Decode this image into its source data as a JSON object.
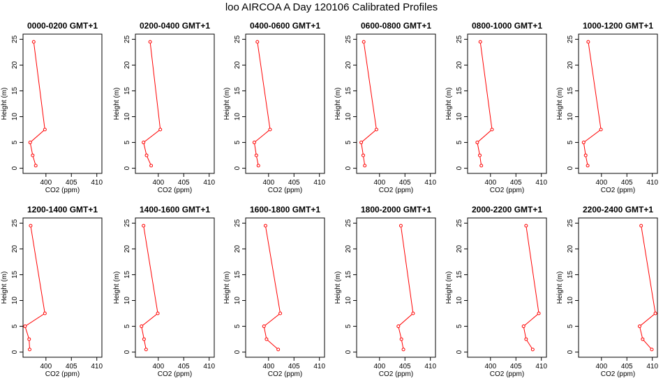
{
  "title": "loo AIRCOA A  Day 120106  Calibrated Profiles",
  "colors": {
    "profile": "#ff0000",
    "axis": "#000000",
    "background": "#ffffff"
  },
  "chart_data": [
    {
      "type": "line",
      "title": "0000-0200 GMT+1",
      "xlabel": "CO2 (ppm)",
      "ylabel": "Height (m)",
      "xlim": [
        395.5,
        411
      ],
      "ylim": [
        -1,
        26
      ],
      "xticks": [
        400,
        405,
        410
      ],
      "yticks": [
        0,
        5,
        10,
        15,
        20,
        25
      ],
      "grid": false,
      "series": [
        {
          "x": [
            398.0,
            397.4,
            396.9,
            399.8,
            397.6
          ],
          "y": [
            0.5,
            2.5,
            5.0,
            7.5,
            24.5
          ]
        }
      ]
    },
    {
      "type": "line",
      "title": "0200-0400 GMT+1",
      "xlabel": "CO2 (ppm)",
      "ylabel": "Height (m)",
      "xlim": [
        395.5,
        411
      ],
      "ylim": [
        -1,
        26
      ],
      "xticks": [
        400,
        405,
        410
      ],
      "yticks": [
        0,
        5,
        10,
        15,
        20,
        25
      ],
      "grid": false,
      "series": [
        {
          "x": [
            398.6,
            397.7,
            397.1,
            400.4,
            398.4
          ],
          "y": [
            0.5,
            2.5,
            5.0,
            7.5,
            24.5
          ]
        }
      ]
    },
    {
      "type": "line",
      "title": "0400-0600 GMT+1",
      "xlabel": "CO2 (ppm)",
      "ylabel": "Height (m)",
      "xlim": [
        395.5,
        411
      ],
      "ylim": [
        -1,
        26
      ],
      "xticks": [
        400,
        405,
        410
      ],
      "yticks": [
        0,
        5,
        10,
        15,
        20,
        25
      ],
      "grid": false,
      "series": [
        {
          "x": [
            398.0,
            397.6,
            397.2,
            400.3,
            397.8
          ],
          "y": [
            0.5,
            2.5,
            5.0,
            7.5,
            24.5
          ]
        }
      ]
    },
    {
      "type": "line",
      "title": "0600-0800 GMT+1",
      "xlabel": "CO2 (ppm)",
      "ylabel": "Height (m)",
      "xlim": [
        395.5,
        411
      ],
      "ylim": [
        -1,
        26
      ],
      "xticks": [
        400,
        405,
        410
      ],
      "yticks": [
        0,
        5,
        10,
        15,
        20,
        25
      ],
      "grid": false,
      "series": [
        {
          "x": [
            397.1,
            396.8,
            396.4,
            399.4,
            396.9
          ],
          "y": [
            0.5,
            2.5,
            5.0,
            7.5,
            24.5
          ]
        }
      ]
    },
    {
      "type": "line",
      "title": "0800-1000 GMT+1",
      "xlabel": "CO2 (ppm)",
      "ylabel": "Height (m)",
      "xlim": [
        395.5,
        411
      ],
      "ylim": [
        -1,
        26
      ],
      "xticks": [
        400,
        405,
        410
      ],
      "yticks": [
        0,
        5,
        10,
        15,
        20,
        25
      ],
      "grid": false,
      "series": [
        {
          "x": [
            398.2,
            397.9,
            397.4,
            400.3,
            398.0
          ],
          "y": [
            0.5,
            2.5,
            5.0,
            7.5,
            24.5
          ]
        }
      ]
    },
    {
      "type": "line",
      "title": "1000-1200 GMT+1",
      "xlabel": "CO2 (ppm)",
      "ylabel": "Height (m)",
      "xlim": [
        395.5,
        411
      ],
      "ylim": [
        -1,
        26
      ],
      "xticks": [
        400,
        405,
        410
      ],
      "yticks": [
        0,
        5,
        10,
        15,
        20,
        25
      ],
      "grid": false,
      "series": [
        {
          "x": [
            397.3,
            396.9,
            396.5,
            399.9,
            397.4
          ],
          "y": [
            0.5,
            2.5,
            5.0,
            7.5,
            24.5
          ]
        }
      ]
    },
    {
      "type": "line",
      "title": "1200-1400 GMT+1",
      "xlabel": "CO2 (ppm)",
      "ylabel": "Height (m)",
      "xlim": [
        395.5,
        411
      ],
      "ylim": [
        -1,
        26
      ],
      "xticks": [
        400,
        405,
        410
      ],
      "yticks": [
        0,
        5,
        10,
        15,
        20,
        25
      ],
      "grid": false,
      "series": [
        {
          "x": [
            396.8,
            396.7,
            395.9,
            399.8,
            397.0
          ],
          "y": [
            0.5,
            2.5,
            5.0,
            7.5,
            24.5
          ]
        }
      ]
    },
    {
      "type": "line",
      "title": "1400-1600 GMT+1",
      "xlabel": "CO2 (ppm)",
      "ylabel": "Height (m)",
      "xlim": [
        395.5,
        411
      ],
      "ylim": [
        -1,
        26
      ],
      "xticks": [
        400,
        405,
        410
      ],
      "yticks": [
        0,
        5,
        10,
        15,
        20,
        25
      ],
      "grid": false,
      "series": [
        {
          "x": [
            397.6,
            397.2,
            396.7,
            399.9,
            397.1
          ],
          "y": [
            0.5,
            2.5,
            5.0,
            7.5,
            24.5
          ]
        }
      ]
    },
    {
      "type": "line",
      "title": "1600-1800 GMT+1",
      "xlabel": "CO2 (ppm)",
      "ylabel": "Height (m)",
      "xlim": [
        395.5,
        411
      ],
      "ylim": [
        -1,
        26
      ],
      "xticks": [
        400,
        405,
        410
      ],
      "yticks": [
        0,
        5,
        10,
        15,
        20,
        25
      ],
      "grid": false,
      "series": [
        {
          "x": [
            401.9,
            399.6,
            399.1,
            402.3,
            399.4
          ],
          "y": [
            0.5,
            2.5,
            5.0,
            7.5,
            24.5
          ]
        }
      ]
    },
    {
      "type": "line",
      "title": "1800-2000 GMT+1",
      "xlabel": "CO2 (ppm)",
      "ylabel": "Height (m)",
      "xlim": [
        395.5,
        411
      ],
      "ylim": [
        -1,
        26
      ],
      "xticks": [
        400,
        405,
        410
      ],
      "yticks": [
        0,
        5,
        10,
        15,
        20,
        25
      ],
      "grid": false,
      "series": [
        {
          "x": [
            404.7,
            404.3,
            403.7,
            406.6,
            404.2
          ],
          "y": [
            0.5,
            2.5,
            5.0,
            7.5,
            24.5
          ]
        }
      ]
    },
    {
      "type": "line",
      "title": "2000-2200 GMT+1",
      "xlabel": "CO2 (ppm)",
      "ylabel": "Height (m)",
      "xlim": [
        395.5,
        411
      ],
      "ylim": [
        -1,
        26
      ],
      "xticks": [
        400,
        405,
        410
      ],
      "yticks": [
        0,
        5,
        10,
        15,
        20,
        25
      ],
      "grid": false,
      "series": [
        {
          "x": [
            408.3,
            407.0,
            406.5,
            409.5,
            407.0
          ],
          "y": [
            0.5,
            2.5,
            5.0,
            7.5,
            24.5
          ]
        }
      ]
    },
    {
      "type": "line",
      "title": "2200-2400 GMT+1",
      "xlabel": "CO2 (ppm)",
      "ylabel": "Height (m)",
      "xlim": [
        395.5,
        411
      ],
      "ylim": [
        -1,
        26
      ],
      "xticks": [
        400,
        405,
        410
      ],
      "yticks": [
        0,
        5,
        10,
        15,
        20,
        25
      ],
      "grid": false,
      "series": [
        {
          "x": [
            409.9,
            408.1,
            407.5,
            410.6,
            407.8
          ],
          "y": [
            0.5,
            2.5,
            5.0,
            7.5,
            24.5
          ]
        }
      ]
    }
  ]
}
